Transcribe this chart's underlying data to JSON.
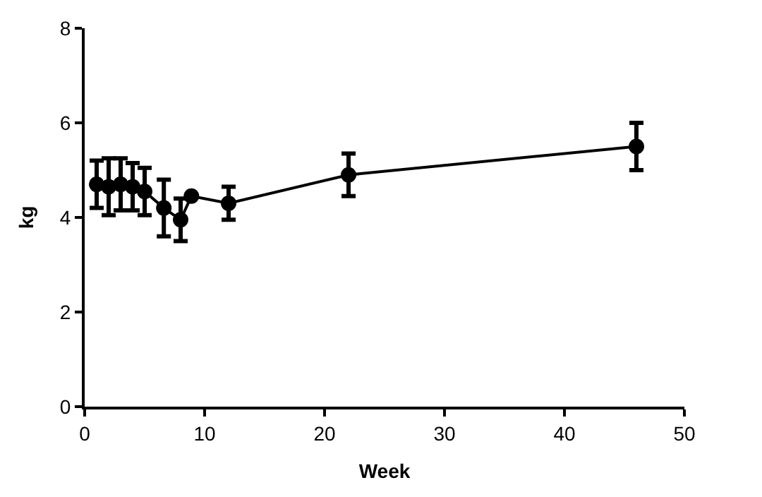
{
  "chart_data": {
    "type": "line",
    "xlabel": "Week",
    "ylabel": "kg",
    "xlim": [
      0,
      50
    ],
    "xticks": [
      0,
      10,
      20,
      30,
      40,
      50
    ],
    "ylim": [
      0,
      8
    ],
    "yticks": [
      0,
      2,
      4,
      6,
      8
    ],
    "marker": "circle",
    "line_style": "solid",
    "legend": false,
    "series": [
      {
        "color": "#000000",
        "x": [
          1,
          2,
          3,
          4,
          5,
          6.6,
          8,
          8.9,
          12,
          22,
          46
        ],
        "values": [
          4.7,
          4.65,
          4.7,
          4.65,
          4.55,
          4.2,
          3.95,
          4.45,
          4.3,
          4.9,
          5.5
        ],
        "errors": [
          0.5,
          0.6,
          0.55,
          0.5,
          0.5,
          0.6,
          0.45,
          null,
          0.35,
          0.45,
          0.5
        ]
      }
    ]
  }
}
